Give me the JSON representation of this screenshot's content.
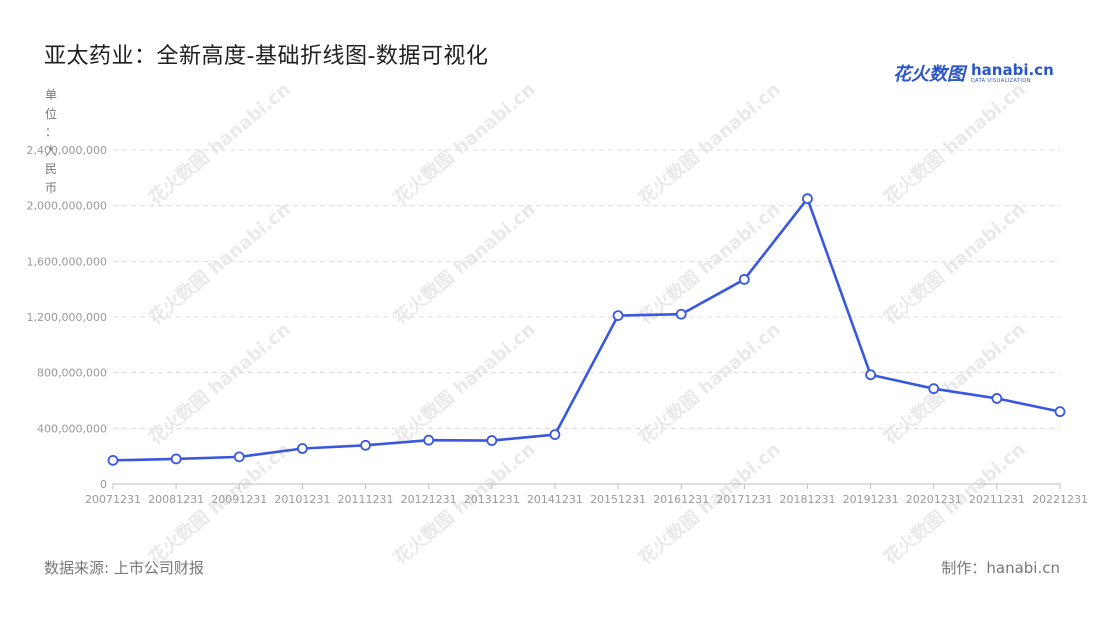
{
  "header": {
    "title": "亚太药业：全新高度-基础折线图-数据可视化",
    "brand_cn": "花火数图",
    "brand_en": "hanabi.cn",
    "brand_sub": "DATA VISUALIZATION"
  },
  "footer": {
    "source": "数据来源: 上市公司财报",
    "maker": "制作：hanabi.cn"
  },
  "watermark": "花火数图 hanabi.cn",
  "colors": {
    "line": "#3a57e0",
    "grid": "#dcdcdc",
    "marker_fill": "#ffffff"
  },
  "chart_data": {
    "type": "line",
    "unit_label": "单位：人民币",
    "categories": [
      "20071231",
      "20081231",
      "20091231",
      "20101231",
      "20111231",
      "20121231",
      "20131231",
      "20141231",
      "20151231",
      "20161231",
      "20171231",
      "20181231",
      "20191231",
      "20201231",
      "20211231",
      "20221231"
    ],
    "series": [
      {
        "values": [
          170000000,
          180000000,
          195000000,
          255000000,
          278000000,
          315000000,
          312000000,
          355000000,
          1210000000,
          1220000000,
          1470000000,
          2050000000,
          785000000,
          685000000,
          615000000,
          520000000
        ]
      }
    ],
    "y_ticks": [
      "0",
      "400,000,000",
      "800,000,000",
      "1,200,000,000",
      "1,600,000,000",
      "2,000,000,000",
      "2,400,000,000"
    ],
    "ylim": [
      0,
      2400000000
    ],
    "grid": true,
    "legend": "none"
  }
}
